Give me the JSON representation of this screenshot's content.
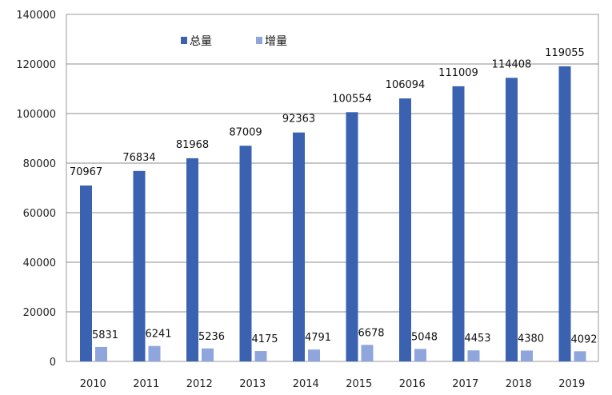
{
  "chart_data": {
    "type": "bar",
    "title": "",
    "xlabel": "",
    "ylabel": "",
    "categories": [
      "2010",
      "2011",
      "2012",
      "2013",
      "2014",
      "2015",
      "2016",
      "2017",
      "2018",
      "2019"
    ],
    "series": [
      {
        "name": "总量",
        "color": "#3A62B0",
        "values": [
          70967,
          76834,
          81968,
          87009,
          92363,
          100554,
          106094,
          111009,
          114408,
          119055
        ]
      },
      {
        "name": "增量",
        "color": "#8EA6DC",
        "values": [
          5831,
          6241,
          5236,
          4175,
          4791,
          6678,
          5048,
          4453,
          4380,
          4092
        ]
      }
    ],
    "ylim": [
      0,
      140000
    ],
    "yticks": [
      0,
      20000,
      40000,
      60000,
      80000,
      100000,
      120000,
      140000
    ],
    "grid": true,
    "legend_position": "top-left"
  }
}
